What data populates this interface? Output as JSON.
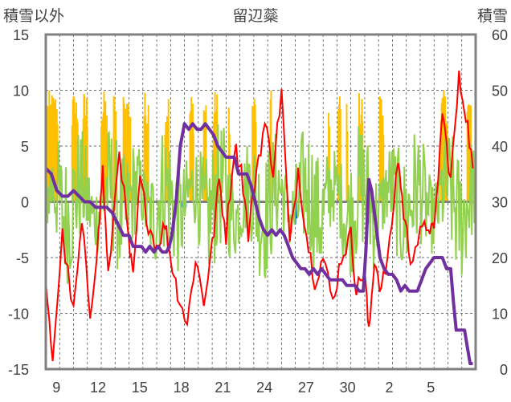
{
  "chart_data": {
    "type": "line",
    "title": "留辺蘂",
    "left_axis_label": "積雪以外",
    "right_axis_label": "積雪",
    "left_ticks": [
      "15",
      "10",
      "5",
      "0",
      "-5",
      "-10",
      "-15"
    ],
    "right_ticks": [
      "60",
      "50",
      "40",
      "30",
      "20",
      "10",
      "0"
    ],
    "x_ticks": [
      "9",
      "12",
      "15",
      "18",
      "21",
      "24",
      "27",
      "30",
      "2",
      "5"
    ],
    "ylim_left": [
      -15,
      15
    ],
    "ylim_right": [
      0,
      60
    ],
    "grid": true,
    "colors": {
      "temperature": "#ff0000",
      "temperature_change": "#92d050",
      "sunshine": "#ffc000",
      "precipitation": "#0070c0",
      "snow_depth": "#7030a0",
      "zero_line": "#808080",
      "frame": "#808080",
      "grid": "#404040"
    },
    "series": [
      {
        "key": "snow_depth",
        "axis": "right",
        "points": [
          [
            0.0,
            36
          ],
          [
            0.4,
            35
          ],
          [
            0.8,
            32
          ],
          [
            1.2,
            31
          ],
          [
            1.6,
            31
          ],
          [
            2.0,
            32
          ],
          [
            2.4,
            31
          ],
          [
            2.8,
            30
          ],
          [
            3.2,
            30
          ],
          [
            3.6,
            29
          ],
          [
            4.0,
            29
          ],
          [
            4.4,
            29
          ],
          [
            4.8,
            28
          ],
          [
            5.2,
            26
          ],
          [
            5.6,
            24
          ],
          [
            6.0,
            24
          ],
          [
            6.3,
            22
          ],
          [
            6.6,
            22
          ],
          [
            6.9,
            22
          ],
          [
            7.2,
            21
          ],
          [
            7.5,
            22
          ],
          [
            7.8,
            21
          ],
          [
            8.1,
            22
          ],
          [
            8.4,
            21
          ],
          [
            8.7,
            21
          ],
          [
            8.9,
            22
          ],
          [
            9.1,
            24
          ],
          [
            9.4,
            30
          ],
          [
            9.7,
            40
          ],
          [
            10.0,
            44
          ],
          [
            10.3,
            43
          ],
          [
            10.6,
            44
          ],
          [
            10.9,
            43
          ],
          [
            11.2,
            43
          ],
          [
            11.5,
            44
          ],
          [
            11.8,
            43
          ],
          [
            12.1,
            42
          ],
          [
            12.4,
            40
          ],
          [
            12.7,
            39
          ],
          [
            13.0,
            38
          ],
          [
            13.3,
            38
          ],
          [
            13.6,
            38
          ],
          [
            13.9,
            35
          ],
          [
            14.2,
            35
          ],
          [
            14.5,
            35
          ],
          [
            14.8,
            33
          ],
          [
            15.1,
            30
          ],
          [
            15.4,
            27
          ],
          [
            15.7,
            25
          ],
          [
            16.0,
            24
          ],
          [
            16.3,
            25
          ],
          [
            16.6,
            24
          ],
          [
            16.9,
            25
          ],
          [
            17.2,
            24
          ],
          [
            17.5,
            22
          ],
          [
            17.8,
            20
          ],
          [
            18.1,
            19
          ],
          [
            18.4,
            18
          ],
          [
            18.7,
            18
          ],
          [
            19.0,
            17
          ],
          [
            19.3,
            18
          ],
          [
            19.6,
            17
          ],
          [
            19.9,
            18
          ],
          [
            20.2,
            17
          ],
          [
            20.5,
            16
          ],
          [
            20.8,
            16
          ],
          [
            21.1,
            16
          ],
          [
            21.4,
            16
          ],
          [
            21.7,
            15
          ],
          [
            22.0,
            15
          ],
          [
            22.3,
            15
          ],
          [
            22.6,
            14
          ],
          [
            22.9,
            14
          ],
          [
            23.1,
            22
          ],
          [
            23.3,
            34
          ],
          [
            23.5,
            32
          ],
          [
            23.8,
            26
          ],
          [
            24.1,
            20
          ],
          [
            24.4,
            18
          ],
          [
            24.7,
            17
          ],
          [
            25.0,
            17
          ],
          [
            25.3,
            16
          ],
          [
            25.6,
            14
          ],
          [
            25.9,
            15
          ],
          [
            26.2,
            14
          ],
          [
            26.5,
            14
          ],
          [
            26.8,
            14
          ],
          [
            27.1,
            16
          ],
          [
            27.4,
            18
          ],
          [
            27.7,
            19
          ],
          [
            28.0,
            20
          ],
          [
            28.3,
            20
          ],
          [
            28.6,
            20
          ],
          [
            28.9,
            18
          ],
          [
            29.2,
            18
          ],
          [
            29.4,
            12
          ],
          [
            29.6,
            7
          ],
          [
            29.9,
            7
          ],
          [
            30.2,
            7
          ],
          [
            30.4,
            4
          ],
          [
            30.6,
            1
          ],
          [
            30.8,
            1
          ]
        ]
      }
    ]
  }
}
